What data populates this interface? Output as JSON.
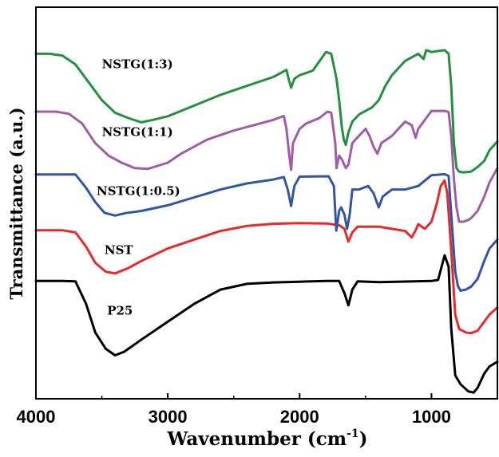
{
  "chart_data": {
    "type": "line",
    "xlabel_main": "Wavenumber (cm",
    "xlabel_sup": "-1",
    "xlabel_close": ")",
    "ylabel": "Transmittance (a.u.)",
    "xlim": [
      4000,
      500
    ],
    "x_reversed": true,
    "ylim": [
      0,
      100
    ],
    "y_ticks_shown": false,
    "grid": false,
    "x_ticks": [
      {
        "value": 4000,
        "label": "4000"
      },
      {
        "value": 3000,
        "label": "3000"
      },
      {
        "value": 2000,
        "label": "2000"
      },
      {
        "value": 1000,
        "label": "1000"
      }
    ],
    "series": [
      {
        "name": "P25",
        "color": "#000000",
        "points": [
          [
            4000,
            31.4
          ],
          [
            3800,
            31.4
          ],
          [
            3700,
            31.3
          ],
          [
            3620,
            25
          ],
          [
            3550,
            17
          ],
          [
            3470,
            12.4
          ],
          [
            3400,
            10.6
          ],
          [
            3330,
            11.6
          ],
          [
            3200,
            15
          ],
          [
            3000,
            20
          ],
          [
            2800,
            25
          ],
          [
            2600,
            29
          ],
          [
            2400,
            30.6
          ],
          [
            2200,
            31
          ],
          [
            2000,
            31.2
          ],
          [
            1800,
            31.4
          ],
          [
            1700,
            31.4
          ],
          [
            1660,
            28
          ],
          [
            1630,
            24.6
          ],
          [
            1600,
            29
          ],
          [
            1560,
            31.3
          ],
          [
            1400,
            31.1
          ],
          [
            1000,
            31.4
          ],
          [
            950,
            31.7
          ],
          [
            900,
            38.6
          ],
          [
            870,
            35.4
          ],
          [
            850,
            18
          ],
          [
            820,
            5
          ],
          [
            780,
            2.5
          ],
          [
            720,
            0.5
          ],
          [
            680,
            0.2
          ],
          [
            650,
            1.5
          ],
          [
            600,
            5.5
          ],
          [
            560,
            7.5
          ],
          [
            500,
            8.8
          ]
        ]
      },
      {
        "name": "NST",
        "color": "#e8282b",
        "points": [
          [
            4000,
            45.6
          ],
          [
            3800,
            45.6
          ],
          [
            3700,
            45
          ],
          [
            3620,
            41
          ],
          [
            3550,
            36.5
          ],
          [
            3470,
            34
          ],
          [
            3400,
            33.5
          ],
          [
            3300,
            35
          ],
          [
            3200,
            37
          ],
          [
            3000,
            40.5
          ],
          [
            2800,
            43
          ],
          [
            2600,
            45.4
          ],
          [
            2400,
            46.8
          ],
          [
            2200,
            47.4
          ],
          [
            2000,
            47.6
          ],
          [
            1800,
            47.5
          ],
          [
            1700,
            47
          ],
          [
            1660,
            46
          ],
          [
            1630,
            42.4
          ],
          [
            1600,
            45
          ],
          [
            1560,
            46.6
          ],
          [
            1400,
            46.6
          ],
          [
            1200,
            45.4
          ],
          [
            1150,
            43.6
          ],
          [
            1120,
            45.6
          ],
          [
            1100,
            47.3
          ],
          [
            1050,
            46
          ],
          [
            1000,
            48
          ],
          [
            960,
            53
          ],
          [
            930,
            58
          ],
          [
            900,
            59.5
          ],
          [
            880,
            56
          ],
          [
            850,
            40
          ],
          [
            820,
            22
          ],
          [
            790,
            18
          ],
          [
            740,
            17
          ],
          [
            700,
            16.8
          ],
          [
            650,
            17.5
          ],
          [
            600,
            20
          ],
          [
            560,
            22
          ],
          [
            500,
            24
          ]
        ]
      },
      {
        "name": "NSTG(1:0.5)",
        "color": "#3255a5",
        "points": [
          [
            4000,
            61.2
          ],
          [
            3800,
            61.2
          ],
          [
            3700,
            61.2
          ],
          [
            3620,
            57.5
          ],
          [
            3550,
            53.5
          ],
          [
            3480,
            50.5
          ],
          [
            3400,
            49.7
          ],
          [
            3320,
            50.4
          ],
          [
            3200,
            51
          ],
          [
            3000,
            52.6
          ],
          [
            2800,
            54.8
          ],
          [
            2600,
            57
          ],
          [
            2400,
            58.7
          ],
          [
            2200,
            59.8
          ],
          [
            2120,
            60.5
          ],
          [
            2090,
            57
          ],
          [
            2065,
            52.4
          ],
          [
            2040,
            58
          ],
          [
            2000,
            60.6
          ],
          [
            1850,
            60.7
          ],
          [
            1780,
            60.7
          ],
          [
            1740,
            58
          ],
          [
            1722,
            45.5
          ],
          [
            1700,
            51
          ],
          [
            1685,
            52
          ],
          [
            1660,
            50
          ],
          [
            1640,
            46
          ],
          [
            1620,
            50
          ],
          [
            1600,
            57
          ],
          [
            1550,
            57
          ],
          [
            1480,
            58
          ],
          [
            1440,
            56
          ],
          [
            1400,
            52
          ],
          [
            1370,
            55
          ],
          [
            1300,
            57
          ],
          [
            1200,
            57
          ],
          [
            1150,
            57.5
          ],
          [
            1100,
            58
          ],
          [
            1000,
            61
          ],
          [
            900,
            61.3
          ],
          [
            870,
            60.8
          ],
          [
            850,
            50
          ],
          [
            820,
            34
          ],
          [
            800,
            30
          ],
          [
            780,
            28.7
          ],
          [
            740,
            29
          ],
          [
            700,
            29.8
          ],
          [
            650,
            32
          ],
          [
            600,
            37
          ],
          [
            560,
            40.5
          ],
          [
            500,
            43
          ]
        ]
      },
      {
        "name": "NSTG(1:1)",
        "color": "#a05ca8",
        "points": [
          [
            4000,
            78.8
          ],
          [
            3850,
            78.8
          ],
          [
            3750,
            78.2
          ],
          [
            3650,
            75.5
          ],
          [
            3550,
            70
          ],
          [
            3450,
            66.5
          ],
          [
            3350,
            64.5
          ],
          [
            3250,
            63
          ],
          [
            3150,
            62.8
          ],
          [
            3000,
            64.5
          ],
          [
            2900,
            67
          ],
          [
            2700,
            71
          ],
          [
            2500,
            73.5
          ],
          [
            2300,
            75.5
          ],
          [
            2200,
            76.5
          ],
          [
            2120,
            77.6
          ],
          [
            2100,
            74
          ],
          [
            2080,
            67
          ],
          [
            2065,
            62.5
          ],
          [
            2050,
            70
          ],
          [
            2000,
            74
          ],
          [
            1950,
            75.5
          ],
          [
            1850,
            77
          ],
          [
            1790,
            78.8
          ],
          [
            1760,
            78.5
          ],
          [
            1730,
            70
          ],
          [
            1720,
            63
          ],
          [
            1700,
            66.5
          ],
          [
            1680,
            65.5
          ],
          [
            1650,
            63
          ],
          [
            1630,
            64
          ],
          [
            1600,
            70
          ],
          [
            1550,
            72
          ],
          [
            1500,
            74
          ],
          [
            1470,
            72
          ],
          [
            1440,
            69
          ],
          [
            1410,
            67
          ],
          [
            1380,
            70
          ],
          [
            1300,
            72
          ],
          [
            1200,
            76
          ],
          [
            1150,
            75
          ],
          [
            1120,
            71.5
          ],
          [
            1100,
            74
          ],
          [
            1000,
            79
          ],
          [
            900,
            79
          ],
          [
            870,
            78.7
          ],
          [
            850,
            72
          ],
          [
            830,
            60
          ],
          [
            810,
            52
          ],
          [
            790,
            48
          ],
          [
            760,
            48
          ],
          [
            720,
            48.5
          ],
          [
            700,
            49
          ],
          [
            650,
            51
          ],
          [
            600,
            55
          ],
          [
            560,
            59
          ],
          [
            500,
            63
          ]
        ]
      },
      {
        "name": "NSTG(1:3)",
        "color": "#268f3f",
        "points": [
          [
            4000,
            95
          ],
          [
            3900,
            95
          ],
          [
            3800,
            94.5
          ],
          [
            3700,
            92
          ],
          [
            3600,
            87
          ],
          [
            3500,
            82
          ],
          [
            3400,
            78.5
          ],
          [
            3300,
            77
          ],
          [
            3200,
            75.8
          ],
          [
            3100,
            76.6
          ],
          [
            3000,
            77.5
          ],
          [
            2900,
            79
          ],
          [
            2800,
            80.5
          ],
          [
            2600,
            83.5
          ],
          [
            2400,
            86
          ],
          [
            2200,
            88.5
          ],
          [
            2100,
            90.5
          ],
          [
            2080,
            87.5
          ],
          [
            2065,
            85.5
          ],
          [
            2040,
            88
          ],
          [
            2000,
            89
          ],
          [
            1900,
            90.3
          ],
          [
            1800,
            95.5
          ],
          [
            1760,
            95
          ],
          [
            1720,
            88
          ],
          [
            1700,
            82
          ],
          [
            1680,
            74.5
          ],
          [
            1665,
            71
          ],
          [
            1650,
            69.5
          ],
          [
            1630,
            73
          ],
          [
            1600,
            76
          ],
          [
            1550,
            78
          ],
          [
            1500,
            79
          ],
          [
            1450,
            80
          ],
          [
            1400,
            82
          ],
          [
            1350,
            86
          ],
          [
            1300,
            89
          ],
          [
            1200,
            93
          ],
          [
            1100,
            95
          ],
          [
            1060,
            93.5
          ],
          [
            1040,
            96
          ],
          [
            1000,
            95.5
          ],
          [
            900,
            96
          ],
          [
            870,
            95
          ],
          [
            850,
            86
          ],
          [
            830,
            70
          ],
          [
            810,
            63
          ],
          [
            790,
            62
          ],
          [
            760,
            61.8
          ],
          [
            700,
            62
          ],
          [
            650,
            63.3
          ],
          [
            600,
            65
          ],
          [
            560,
            68
          ],
          [
            500,
            70.5
          ]
        ]
      }
    ],
    "annotations": [
      {
        "series": "NSTG(1:3)",
        "text": "NSTG(1:3)",
        "x": 3500,
        "y": 91
      },
      {
        "series": "NSTG(1:1)",
        "text": "NSTG(1:1)",
        "x": 3500,
        "y": 72
      },
      {
        "series": "NSTG(1:0.5)",
        "text": "NSTG(1:0.5)",
        "x": 3540,
        "y": 55.5
      },
      {
        "series": "NST",
        "text": "NST",
        "x": 3480,
        "y": 39
      },
      {
        "series": "P25",
        "text": "P25",
        "x": 3460,
        "y": 22
      }
    ]
  }
}
